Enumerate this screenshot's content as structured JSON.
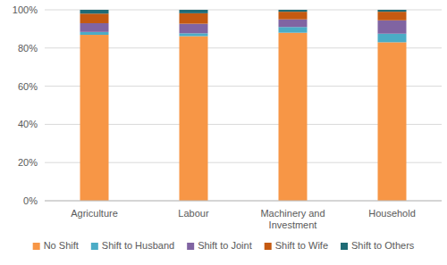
{
  "chart_data": {
    "type": "bar",
    "stacked": true,
    "categories": [
      "Agriculture",
      "Labour",
      "Machinery and Investment",
      "Household"
    ],
    "series": [
      {
        "name": "No Shift",
        "color": "#f79646",
        "values": [
          86.9,
          86.2,
          88.0,
          83.0
        ]
      },
      {
        "name": "Shift to Husband",
        "color": "#4bacc6",
        "values": [
          1.5,
          1.5,
          3.0,
          4.5
        ]
      },
      {
        "name": "Shift to Joint",
        "color": "#8064a2",
        "values": [
          4.6,
          5.0,
          4.0,
          7.0
        ]
      },
      {
        "name": "Shift to Wife",
        "color": "#c55a11",
        "values": [
          5.0,
          5.5,
          4.0,
          4.5
        ]
      },
      {
        "name": "Shift to Others",
        "color": "#1f6b75",
        "values": [
          2.0,
          1.8,
          1.0,
          1.0
        ]
      }
    ],
    "ylim": [
      0,
      100
    ],
    "yticks": [
      {
        "value": 0,
        "label": "0%"
      },
      {
        "value": 20,
        "label": "20%"
      },
      {
        "value": 40,
        "label": "40%"
      },
      {
        "value": 60,
        "label": "60%"
      },
      {
        "value": 80,
        "label": "80%"
      },
      {
        "value": 100,
        "label": "100%"
      }
    ],
    "grid": true,
    "legend": "bottom"
  }
}
